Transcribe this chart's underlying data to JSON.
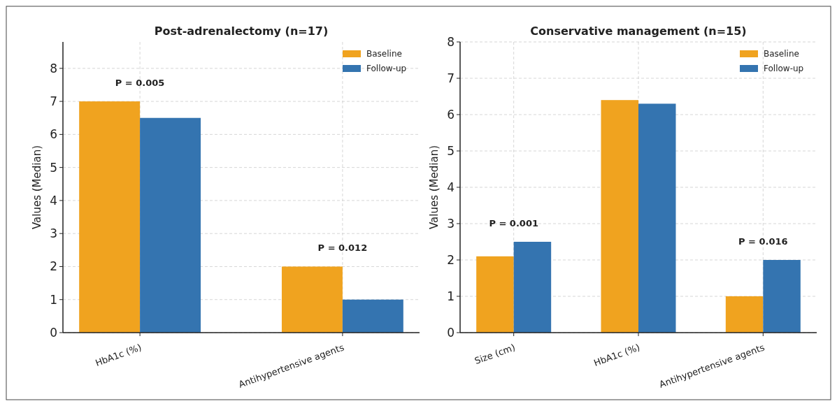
{
  "chart_data": [
    {
      "type": "bar",
      "title": "Post-adrenalectomy (n=17)",
      "ylabel": "Values (Median)",
      "categories": [
        "HbA1c (%)",
        "Antihypertensive agents"
      ],
      "series": [
        {
          "name": "Baseline",
          "color": "#f0a31f",
          "values": [
            7,
            2
          ]
        },
        {
          "name": "Follow-up",
          "color": "#3474b0",
          "values": [
            6.5,
            1
          ]
        }
      ],
      "ylim": [
        0,
        8.8
      ],
      "yticks": [
        0,
        1,
        2,
        3,
        4,
        5,
        6,
        7,
        8
      ],
      "grid": true,
      "legend": "top right",
      "annotations": [
        "P = 0.005",
        "P = 0.012"
      ]
    },
    {
      "type": "bar",
      "title": "Conservative management (n=15)",
      "ylabel": "Values (Median)",
      "categories": [
        "Size (cm)",
        "HbA1c (%)",
        "Antihypertensive agents"
      ],
      "series": [
        {
          "name": "Baseline",
          "color": "#f0a31f",
          "values": [
            2.1,
            6.4,
            1
          ]
        },
        {
          "name": "Follow-up",
          "color": "#3474b0",
          "values": [
            2.5,
            6.3,
            2
          ]
        }
      ],
      "ylim": [
        0,
        8
      ],
      "yticks": [
        0,
        1,
        2,
        3,
        4,
        5,
        6,
        7,
        8
      ],
      "grid": true,
      "legend": "top right",
      "annotations": [
        "P = 0.001",
        "P = 0.016"
      ]
    }
  ]
}
